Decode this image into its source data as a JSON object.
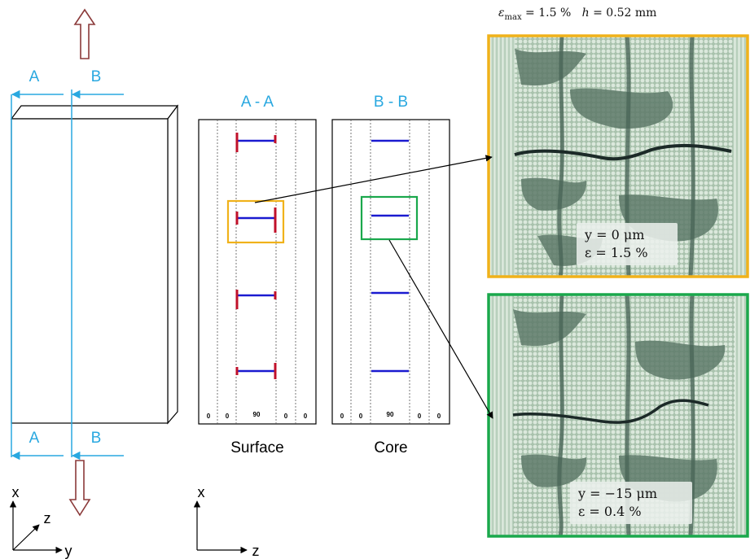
{
  "header": {
    "eps_max_symbol": "ε",
    "eps_max_sub": "max",
    "eps_max_value": " = 1.5 %",
    "h_symbol": "h",
    "h_value": " = 0.52 mm"
  },
  "section_labels": {
    "a_top": "A",
    "b_top": "B",
    "a_bottom": "A",
    "b_bottom": "B"
  },
  "panels": {
    "surface": {
      "title": "A - A",
      "caption": "Surface",
      "plies": [
        "0",
        "0",
        "90",
        "0",
        "0"
      ]
    },
    "core": {
      "title": "B - B",
      "caption": "Core",
      "plies": [
        "0",
        "0",
        "90",
        "0",
        "0"
      ]
    }
  },
  "micrographs": {
    "top": {
      "line1": "y  = 0 μm",
      "line2": "ε  =  1.5 %",
      "border_color": "#f0b21a"
    },
    "bottom": {
      "line1": "y  = −15 μm",
      "line2": "ε  = 0.4 %",
      "border_color": "#1aa84c"
    }
  },
  "axes": {
    "left": {
      "vertical": "x",
      "horizontal": "y",
      "diagonal": "z"
    },
    "middle": {
      "vertical": "x",
      "horizontal": "z"
    }
  },
  "colors": {
    "section_line": "#29a8e0",
    "crack_blue": "#1a1ad0",
    "crack_tip_red": "#c0102a",
    "load_arrow": "#8b3a3a",
    "surface_box": "#f0b21a",
    "core_box": "#1aa84c"
  }
}
